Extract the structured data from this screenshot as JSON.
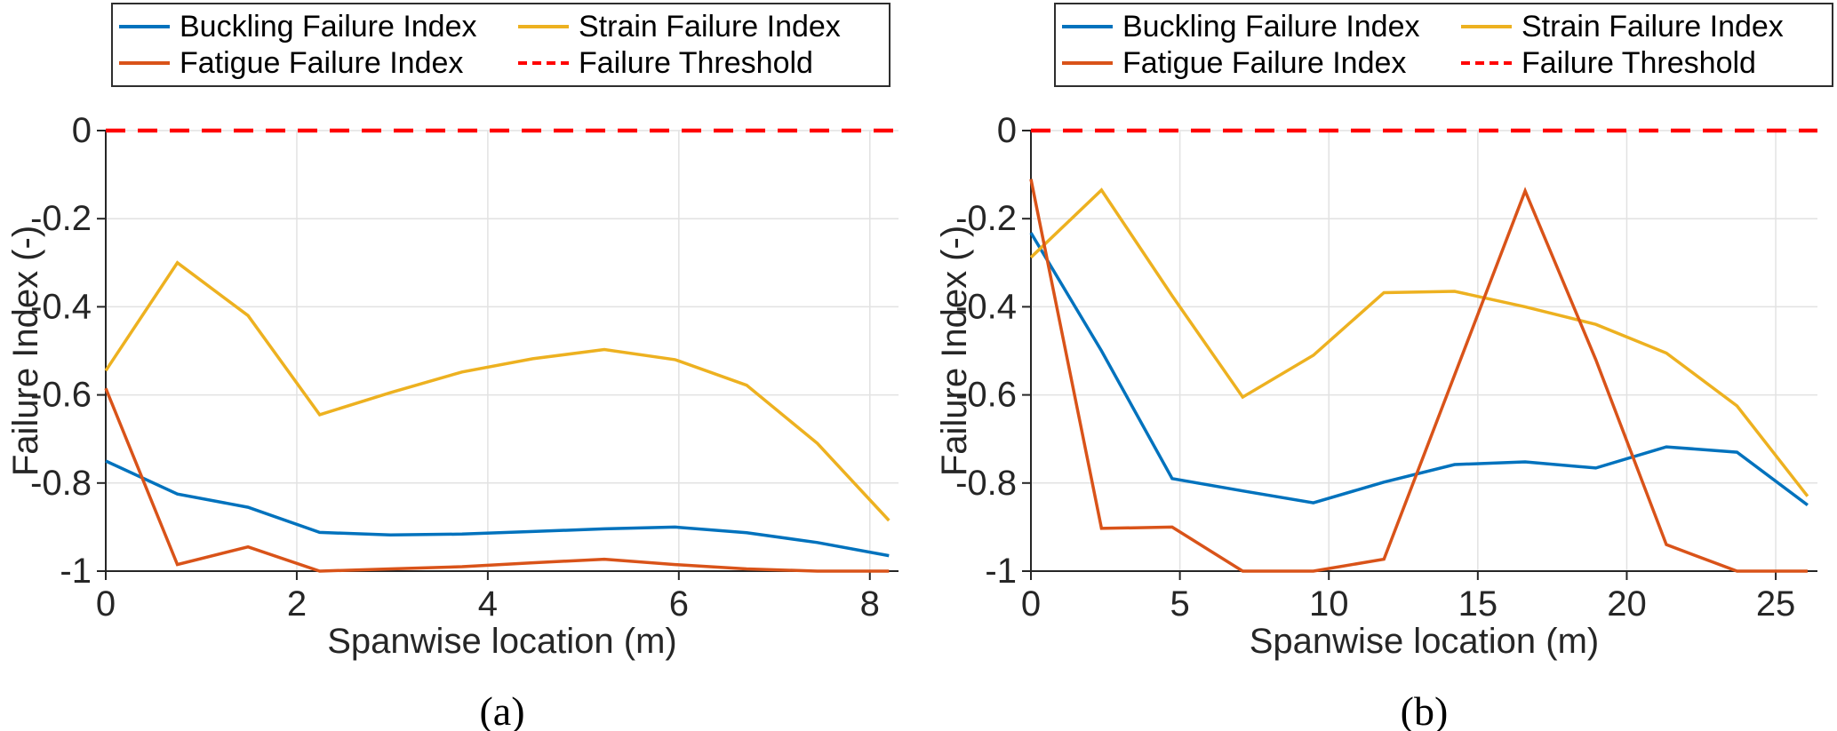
{
  "legend": {
    "items": [
      {
        "label": "Buckling Failure Index",
        "color": "#0072BD",
        "dash": false
      },
      {
        "label": "Strain Failure Index",
        "color": "#EDB120",
        "dash": false
      },
      {
        "label": "Fatigue Failure Index",
        "color": "#D95319",
        "dash": false
      },
      {
        "label": "Failure Threshold",
        "color": "#FF0000",
        "dash": true
      }
    ]
  },
  "style": {
    "axis_color": "#262626",
    "grid_color": "#e2e2e2",
    "threshold_color": "#FF0000",
    "series_blue": "#0072BD",
    "series_yellow": "#EDB120",
    "series_orange": "#D95319"
  },
  "chart_data": [
    {
      "type": "line",
      "caption": "(a)",
      "xlabel": "Spanwise location (m)",
      "ylabel": "Failure Index (-)",
      "xlim": [
        0,
        8.3
      ],
      "ylim": [
        -1,
        0
      ],
      "xticks": [
        0,
        2,
        4,
        6,
        8
      ],
      "yticks": [
        0,
        -0.2,
        -0.4,
        -0.6,
        -0.8,
        -1
      ],
      "grid": true,
      "legend_position": "top",
      "x": [
        0,
        0.75,
        1.49,
        2.24,
        2.98,
        3.73,
        4.47,
        5.22,
        5.96,
        6.71,
        7.45,
        8.2
      ],
      "series": [
        {
          "name": "Buckling Failure Index",
          "color": "#0072BD",
          "dash": false,
          "values": [
            -0.75,
            -0.825,
            -0.855,
            -0.912,
            -0.918,
            -0.916,
            -0.91,
            -0.904,
            -0.9,
            -0.913,
            -0.935,
            -0.965
          ]
        },
        {
          "name": "Strain Failure Index",
          "color": "#EDB120",
          "dash": false,
          "values": [
            -0.545,
            -0.3,
            -0.42,
            -0.645,
            -0.595,
            -0.548,
            -0.518,
            -0.497,
            -0.52,
            -0.578,
            -0.71,
            -0.885
          ]
        },
        {
          "name": "Fatigue Failure Index",
          "color": "#D95319",
          "dash": false,
          "values": [
            -0.585,
            -0.985,
            -0.945,
            -1.0,
            -0.995,
            -0.99,
            -0.981,
            -0.973,
            -0.985,
            -0.995,
            -1.0,
            -1.0
          ]
        },
        {
          "name": "Failure Threshold",
          "color": "#FF0000",
          "dash": true,
          "constant": 0
        }
      ]
    },
    {
      "type": "line",
      "caption": "(b)",
      "xlabel": "Spanwise location (m)",
      "ylabel": "Failure Index (-)",
      "xlim": [
        0,
        26.4
      ],
      "ylim": [
        -1,
        0
      ],
      "xticks": [
        0,
        5,
        10,
        15,
        20,
        25
      ],
      "yticks": [
        0,
        -0.2,
        -0.4,
        -0.6,
        -0.8,
        -1
      ],
      "grid": true,
      "legend_position": "top",
      "x": [
        0,
        2.37,
        4.74,
        7.11,
        9.48,
        11.85,
        14.22,
        16.59,
        18.96,
        21.33,
        23.7,
        26.07
      ],
      "series": [
        {
          "name": "Buckling Failure Index",
          "color": "#0072BD",
          "dash": false,
          "values": [
            -0.232,
            -0.5,
            -0.79,
            -0.818,
            -0.845,
            -0.798,
            -0.758,
            -0.752,
            -0.766,
            -0.718,
            -0.73,
            -0.85
          ]
        },
        {
          "name": "Strain Failure Index",
          "color": "#EDB120",
          "dash": false,
          "values": [
            -0.288,
            -0.135,
            -0.375,
            -0.605,
            -0.51,
            -0.368,
            -0.365,
            -0.4,
            -0.44,
            -0.505,
            -0.625,
            -0.83
          ]
        },
        {
          "name": "Fatigue Failure Index",
          "color": "#D95319",
          "dash": false,
          "values": [
            -0.11,
            -0.903,
            -0.9,
            -1.0,
            -1.0,
            -0.973,
            -0.555,
            -0.137,
            -0.52,
            -0.94,
            -1.0,
            -1.0
          ]
        },
        {
          "name": "Failure Threshold",
          "color": "#FF0000",
          "dash": true,
          "constant": 0
        }
      ]
    }
  ]
}
